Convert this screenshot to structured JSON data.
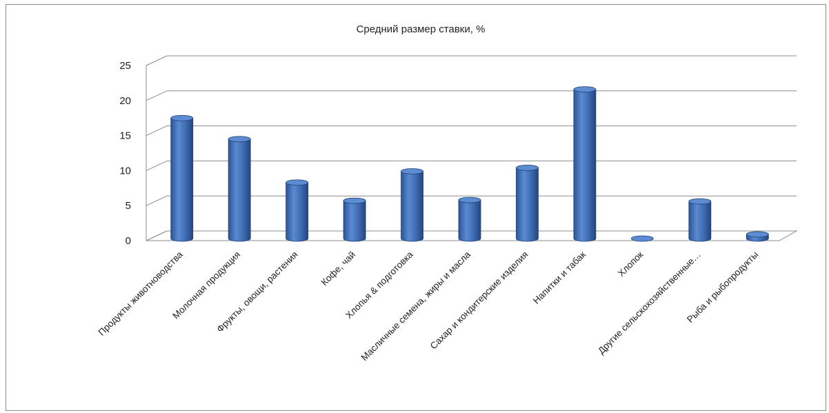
{
  "chart_data": {
    "type": "bar",
    "title": "Средний размер ставки, %",
    "xlabel": "",
    "ylabel": "",
    "ylim": [
      0,
      25
    ],
    "yticks": [
      0,
      5,
      10,
      15,
      20,
      25
    ],
    "grid": true,
    "legend": "none",
    "style": "3d-cylinder",
    "bar_color": "#3f6fb5",
    "categories": [
      "Продукты животноводства",
      "Молочная продукция",
      "Фрукты, овощи, растения",
      "Кофе, чай",
      "Хлопья & подготовка",
      "Масличные семена, жиры и масла",
      "Сахар и кондитерские изделия",
      "Напитки и табак",
      "Хлопок",
      "Другие сельскохозяйственные…",
      "Рыба и рыбопродукты"
    ],
    "values": [
      17.2,
      14.2,
      8.0,
      5.4,
      9.6,
      5.5,
      10.1,
      21.3,
      0.0,
      5.3,
      0.6
    ]
  }
}
